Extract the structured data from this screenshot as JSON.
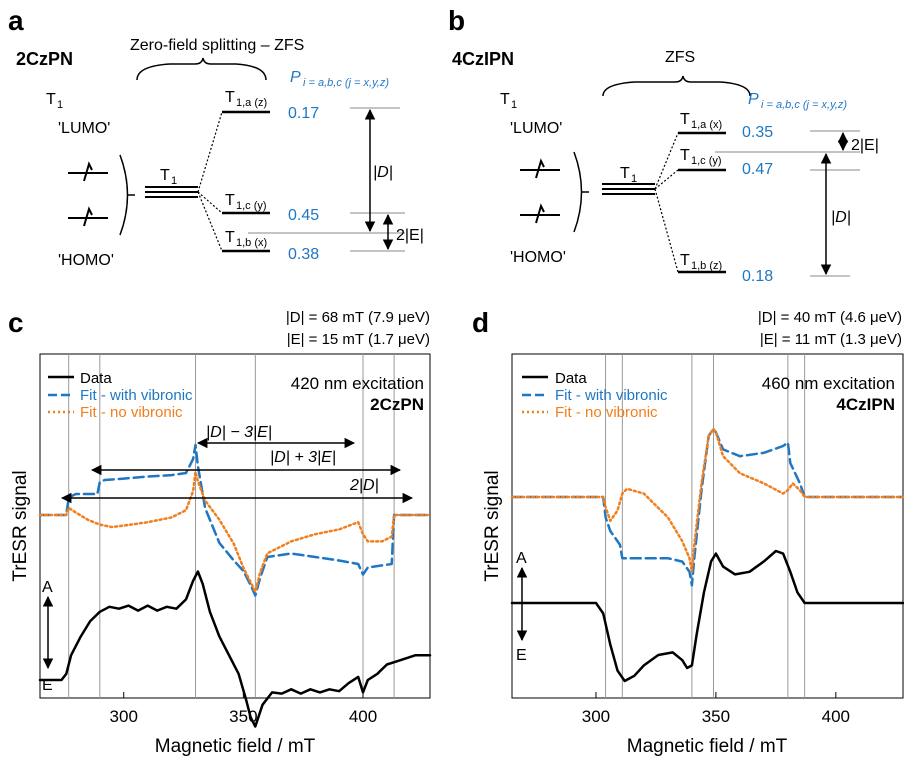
{
  "panels": {
    "a": {
      "letter": "a",
      "molecule": "2CzPN",
      "zfs_label": "Zero-field splitting – ZFS",
      "p_label": "P",
      "p_sub": "i = a,b,c (j = x,y,z)",
      "t1_left": "T",
      "t1_left_sub": "1",
      "lumo": "'LUMO'",
      "homo": "'HOMO'",
      "t1_center": "T",
      "t1_center_sub": "1",
      "levels": [
        {
          "label": "T",
          "sub": "1,a (z)",
          "p": "0.17"
        },
        {
          "label": "T",
          "sub": "1,c (y)",
          "p": "0.45"
        },
        {
          "label": "T",
          "sub": "1,b (x)",
          "p": "0.38"
        }
      ],
      "D_label": "|D|",
      "E_label": "2|E|"
    },
    "b": {
      "letter": "b",
      "molecule": "4CzIPN",
      "zfs_label": "ZFS",
      "p_label": "P",
      "p_sub": "i = a,b,c (j = x,y,z)",
      "t1_left": "T",
      "t1_left_sub": "1",
      "lumo": "'LUMO'",
      "homo": "'HOMO'",
      "t1_center": "T",
      "t1_center_sub": "1",
      "levels": [
        {
          "label": "T",
          "sub": "1,a (x)",
          "p": "0.35"
        },
        {
          "label": "T",
          "sub": "1,c (y)",
          "p": "0.47"
        },
        {
          "label": "T",
          "sub": "1,b (z)",
          "p": "0.18"
        }
      ],
      "D_label": "|D|",
      "E_label": "2|E|"
    },
    "c": {
      "letter": "c",
      "param_D": "|D| = 68 mT (7.9 μeV)",
      "param_E": "|E| = 15 mT (1.7 μeV)",
      "excitation": "420 nm excitation",
      "molecule": "2CzPN",
      "ann1": "|D| − 3|E|",
      "ann2": "|D| + 3|E|",
      "ann3": "2|D|",
      "axis_A": "A",
      "axis_E": "E"
    },
    "d": {
      "letter": "d",
      "param_D": "|D| = 40 mT (4.6 μeV)",
      "param_E": "|E| = 11 mT (1.3 μeV)",
      "excitation": "460 nm excitation",
      "molecule": "4CzIPN",
      "axis_A": "A",
      "axis_E": "E"
    }
  },
  "legend": {
    "data": "Data",
    "fit_vib": "Fit - with vibronic",
    "fit_novib": "Fit - no vibronic"
  },
  "axes": {
    "xlabel": "Magnetic field / mT",
    "ylabel": "TrESR signal"
  },
  "colors": {
    "data": "#000000",
    "fit_vib": "#1f77c4",
    "fit_novib": "#f07f1f",
    "probability": "#1f77c4"
  },
  "chart_data": [
    {
      "panel": "c",
      "type": "line",
      "xlabel": "Magnetic field / mT",
      "ylabel": "TrESR signal",
      "xlim": [
        265,
        428
      ],
      "xticks": [
        300,
        350,
        400
      ],
      "vlines": [
        277,
        290,
        330,
        355,
        400,
        413
      ],
      "series": [
        {
          "name": "Data",
          "style": "solid",
          "x": [
            265,
            270,
            274,
            276,
            278,
            282,
            286,
            290,
            294,
            298,
            302,
            306,
            310,
            314,
            318,
            322,
            326,
            329,
            331,
            333,
            336,
            340,
            344,
            348,
            351,
            353,
            355,
            358,
            362,
            366,
            370,
            374,
            378,
            382,
            386,
            390,
            394,
            398,
            400,
            402,
            406,
            410,
            414,
            418,
            422,
            428
          ],
          "y": [
            -1.0,
            -1.0,
            -1.0,
            -0.9,
            -0.6,
            -0.3,
            -0.05,
            0.1,
            0.18,
            0.15,
            0.2,
            0.12,
            0.2,
            0.12,
            0.18,
            0.15,
            0.3,
            0.6,
            0.75,
            0.55,
            0.1,
            -0.3,
            -0.6,
            -0.9,
            -1.3,
            -1.6,
            -1.75,
            -1.4,
            -1.2,
            -1.22,
            -1.15,
            -1.22,
            -1.15,
            -1.2,
            -1.15,
            -1.18,
            -1.05,
            -0.95,
            -1.2,
            -1.0,
            -0.9,
            -0.75,
            -0.7,
            -0.65,
            -0.6,
            -0.6
          ]
        },
        {
          "name": "Fit - with vibronic",
          "style": "dashed",
          "x": [
            265,
            276,
            277,
            280,
            289,
            290,
            292,
            300,
            310,
            320,
            326,
            329,
            330,
            331,
            334,
            340,
            346,
            350,
            353,
            355,
            357,
            360,
            370,
            380,
            390,
            398,
            400,
            402,
            412,
            413,
            415,
            428
          ],
          "y": [
            0,
            0,
            0.25,
            0.3,
            0.3,
            0.47,
            0.5,
            0.52,
            0.55,
            0.57,
            0.6,
            0.8,
            1.0,
            0.7,
            0.1,
            -0.4,
            -0.65,
            -0.8,
            -1.0,
            -1.15,
            -0.9,
            -0.6,
            -0.55,
            -0.6,
            -0.65,
            -0.7,
            -0.85,
            -0.75,
            -0.7,
            0,
            0,
            0
          ]
        },
        {
          "name": "Fit - no vibronic",
          "style": "dotted",
          "x": [
            265,
            276,
            277,
            280,
            285,
            290,
            295,
            300,
            310,
            320,
            326,
            329,
            330,
            331,
            334,
            340,
            346,
            350,
            353,
            355,
            357,
            360,
            370,
            380,
            390,
            398,
            400,
            402,
            408,
            412,
            413,
            415,
            428
          ],
          "y": [
            0,
            0,
            0.15,
            0.05,
            -0.1,
            -0.2,
            -0.25,
            -0.22,
            -0.15,
            -0.05,
            0.1,
            0.5,
            0.9,
            0.7,
            0.3,
            -0.1,
            -0.6,
            -1.1,
            -1.4,
            -1.6,
            -1.2,
            -0.8,
            -0.55,
            -0.4,
            -0.3,
            -0.15,
            -0.4,
            -0.55,
            -0.55,
            -0.45,
            0,
            0,
            0
          ]
        }
      ]
    },
    {
      "panel": "d",
      "type": "line",
      "xlabel": "Magnetic field / mT",
      "ylabel": "TrESR signal",
      "xlim": [
        265,
        428
      ],
      "xticks": [
        300,
        350,
        400
      ],
      "vlines": [
        304,
        311,
        340,
        349,
        380,
        387
      ],
      "series": [
        {
          "name": "Data",
          "style": "solid",
          "x": [
            265,
            270,
            280,
            290,
            300,
            303,
            306,
            309,
            312,
            316,
            320,
            326,
            332,
            336,
            338,
            340,
            342,
            345,
            348,
            350,
            353,
            358,
            364,
            370,
            375,
            378,
            381,
            384,
            387,
            390,
            400,
            410,
            428
          ],
          "y": [
            0,
            0,
            0,
            0,
            0,
            -0.2,
            -0.8,
            -1.3,
            -1.5,
            -1.4,
            -1.2,
            -1.0,
            -0.95,
            -1.1,
            -1.25,
            -1.2,
            -0.6,
            0.2,
            0.8,
            0.95,
            0.7,
            0.55,
            0.6,
            0.8,
            1.0,
            0.95,
            0.6,
            0.2,
            0,
            0,
            0,
            0,
            0
          ]
        },
        {
          "name": "Fit - with vibronic",
          "style": "dashed",
          "x": [
            265,
            303,
            304,
            306,
            310,
            311,
            320,
            330,
            336,
            339,
            340,
            341,
            344,
            347,
            349,
            350,
            353,
            360,
            370,
            378,
            380,
            381,
            385,
            387,
            390,
            428
          ],
          "y": [
            0,
            0,
            -0.3,
            -0.5,
            -0.7,
            -0.9,
            -0.9,
            -0.9,
            -0.95,
            -1.1,
            -1.3,
            -0.9,
            0.1,
            0.9,
            1.0,
            0.95,
            0.7,
            0.6,
            0.65,
            0.75,
            0.8,
            0.5,
            0.2,
            0,
            0,
            0
          ]
        },
        {
          "name": "Fit - no vibronic",
          "style": "dotted",
          "x": [
            265,
            303,
            304,
            306,
            309,
            311,
            313,
            320,
            330,
            336,
            339,
            340,
            341,
            344,
            347,
            349,
            350,
            353,
            360,
            370,
            378,
            380,
            382,
            385,
            387,
            390,
            428
          ],
          "y": [
            0,
            0,
            -0.15,
            -0.35,
            -0.2,
            0.05,
            0.12,
            0.05,
            -0.3,
            -0.65,
            -0.9,
            -1.1,
            -0.7,
            0.2,
            0.9,
            1.0,
            0.95,
            0.6,
            0.35,
            0.2,
            0.05,
            0.1,
            0.2,
            0.1,
            0,
            0,
            0
          ]
        }
      ]
    }
  ]
}
